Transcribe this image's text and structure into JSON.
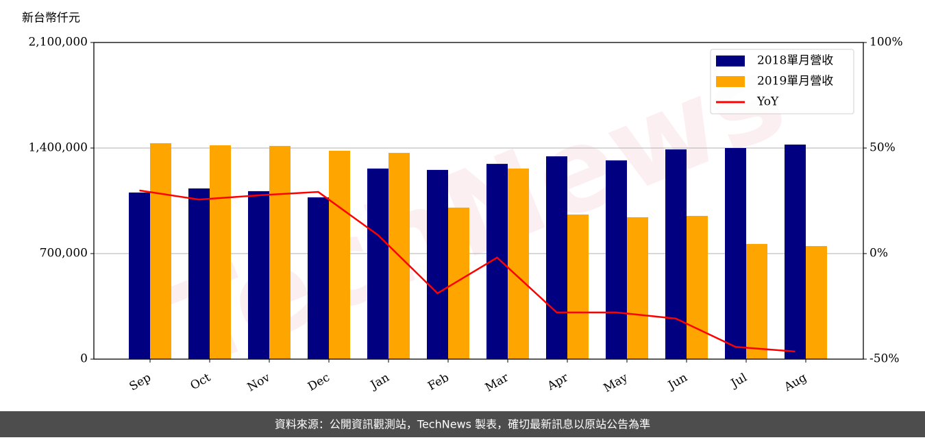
{
  "chart_data": {
    "type": "bar",
    "y_axis_label": "新台幣仟元",
    "watermark": "TechNews",
    "footer": "資料來源：公開資訊觀測站，TechNews 製表，確切最新訊息以原站公告為準",
    "categories": [
      "Sep",
      "Oct",
      "Nov",
      "Dec",
      "Jan",
      "Feb",
      "Mar",
      "Apr",
      "May",
      "Jun",
      "Jul",
      "Aug"
    ],
    "series": [
      {
        "name": "2018單月營收",
        "color": "#000080",
        "values": [
          1105000,
          1132000,
          1114000,
          1073000,
          1264000,
          1255000,
          1295000,
          1345000,
          1318000,
          1391000,
          1400000,
          1423000
        ]
      },
      {
        "name": "2019單月營收",
        "color": "#ffa500",
        "values": [
          1432000,
          1418000,
          1414000,
          1382000,
          1368000,
          1005000,
          1264000,
          959000,
          941000,
          950000,
          764000,
          750000
        ]
      },
      {
        "name": "YoY",
        "type": "line",
        "axis": "y2",
        "color": "#ff0000",
        "values": [
          29.9,
          25.6,
          27.6,
          29.2,
          8.8,
          -18.8,
          -1.9,
          -27.9,
          -27.9,
          -30.8,
          -44.2,
          -46.4
        ]
      }
    ],
    "ylim": [
      0,
      2100000
    ],
    "yticks": [
      0,
      {
        "value": 700000,
        "label": "700,000"
      },
      {
        "value": 1400000,
        "label": "1,400,000"
      },
      {
        "value": 2100000,
        "label": "2,100,000"
      }
    ],
    "y2lim": [
      -50,
      100
    ],
    "y2ticks": [
      {
        "value": -50,
        "label": "-50%"
      },
      {
        "value": 0,
        "label": "0%"
      },
      {
        "value": 50,
        "label": "50%"
      },
      {
        "value": 100,
        "label": "100%"
      }
    ],
    "grid": true,
    "legend": "upper right"
  }
}
